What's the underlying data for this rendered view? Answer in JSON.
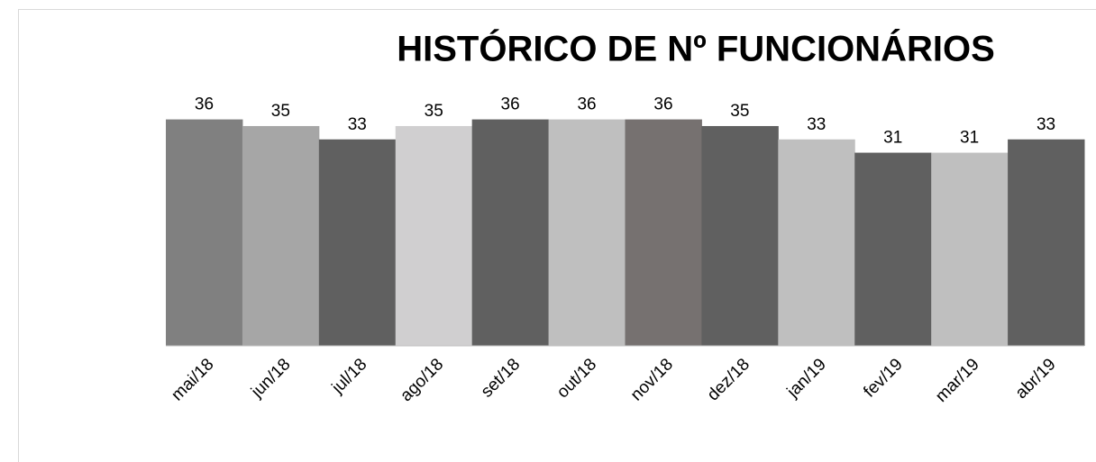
{
  "chart_data": {
    "type": "bar",
    "title": "HISTÓRICO DE  Nº FUNCIONÁRIOS",
    "categories": [
      "mai/18",
      "jun/18",
      "jul/18",
      "ago/18",
      "set/18",
      "out/18",
      "nov/18",
      "dez/18",
      "jan/19",
      "fev/19",
      "mar/19",
      "abr/19"
    ],
    "values": [
      36,
      35,
      33,
      35,
      36,
      36,
      36,
      35,
      33,
      31,
      31,
      33
    ],
    "colors": [
      "#808080",
      "#a6a6a6",
      "#606060",
      "#d0cfd0",
      "#606060",
      "#bfbfbf",
      "#767170",
      "#606060",
      "#bfbfbf",
      "#606060",
      "#bfbfbf",
      "#606060"
    ],
    "ylim": [
      2,
      40
    ]
  }
}
